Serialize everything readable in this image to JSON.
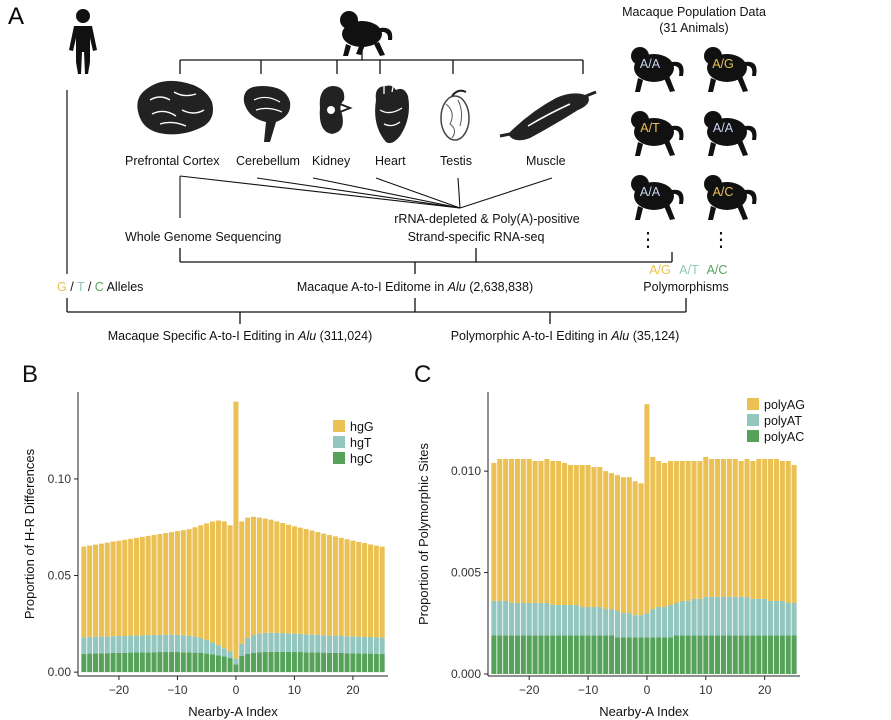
{
  "panel_a": {
    "panel_letter": "A",
    "population": {
      "title_line1": "Macaque Population Data",
      "title_line2": "(31 Animals)",
      "genotypes": [
        "A/A",
        "A/G",
        "A/T",
        "A/A",
        "A/A",
        "A/C"
      ],
      "ellipsis": "⋮",
      "poly_ag": "A/G",
      "poly_at": "A/T",
      "poly_ac": "A/C",
      "polymorphisms_label": "Polymorphisms"
    },
    "tissues": [
      "Prefrontal Cortex",
      "Cerebellum",
      "Kidney",
      "Heart",
      "Testis",
      "Muscle"
    ],
    "wgs_label": "Whole Genome Sequencing",
    "rnaseq_line1": "rRNA-depleted & Poly(A)-positive",
    "rnaseq_line2": "Strand-specific RNA-seq",
    "alleles": {
      "g": "G",
      "sep1": " / ",
      "t": "T",
      "sep2": " / ",
      "c": "C",
      "rest": " Alleles"
    },
    "editome": {
      "pre": "Macaque A-to-I Editome in ",
      "alu": "Alu",
      "post": " (2,638,838)"
    },
    "specific": {
      "pre": "Macaque Specific A-to-I Editing in ",
      "alu": "Alu",
      "post": " (311,024)"
    },
    "polymorphic": {
      "pre": "Polymorphic A-to-I Editing in ",
      "alu": "Alu",
      "post": " (35,124)"
    }
  },
  "colors": {
    "yellow": "#EBC154",
    "teal": "#93C6BF",
    "green": "#57A25B",
    "black": "#111111"
  },
  "chart_data": [
    {
      "panel_letter": "B",
      "type": "bar",
      "stacked": true,
      "xlabel": "Nearby-A Index",
      "ylabel": "Proportion of H-R Differences",
      "xlim": [
        -27,
        26
      ],
      "ylim": [
        -0.002,
        0.145
      ],
      "xticks": [
        -20,
        -10,
        0,
        10,
        20
      ],
      "xtick_labels": [
        "−20",
        "−10",
        "0",
        "10",
        "20"
      ],
      "yticks": [
        0,
        0.05,
        0.1
      ],
      "ytick_labels": [
        "0.00",
        "0.05",
        "0.10"
      ],
      "legend_position": "top-right",
      "x": [
        -26,
        -25,
        -24,
        -23,
        -22,
        -21,
        -20,
        -19,
        -18,
        -17,
        -16,
        -15,
        -14,
        -13,
        -12,
        -11,
        -10,
        -9,
        -8,
        -7,
        -6,
        -5,
        -4,
        -3,
        -2,
        -1,
        0,
        1,
        2,
        3,
        4,
        5,
        6,
        7,
        8,
        9,
        10,
        11,
        12,
        13,
        14,
        15,
        16,
        17,
        18,
        19,
        20,
        21,
        22,
        23,
        24,
        25
      ],
      "series": [
        {
          "name": "hgC",
          "values": [
            0.0095,
            0.0096,
            0.0097,
            0.0098,
            0.0098,
            0.0099,
            0.01,
            0.01,
            0.0101,
            0.0102,
            0.0102,
            0.0103,
            0.0103,
            0.0104,
            0.0104,
            0.0104,
            0.0104,
            0.0103,
            0.0102,
            0.0101,
            0.0099,
            0.0096,
            0.0092,
            0.0087,
            0.0081,
            0.0073,
            0.004,
            0.0085,
            0.0094,
            0.0099,
            0.0102,
            0.0104,
            0.0105,
            0.0105,
            0.0105,
            0.0105,
            0.0104,
            0.0104,
            0.0103,
            0.0102,
            0.0102,
            0.0101,
            0.01,
            0.01,
            0.0099,
            0.0098,
            0.0098,
            0.0097,
            0.0096,
            0.0096,
            0.0095,
            0.0095
          ]
        },
        {
          "name": "hgT",
          "values": [
            0.0085,
            0.0085,
            0.0086,
            0.0086,
            0.0086,
            0.0087,
            0.0087,
            0.0087,
            0.0088,
            0.0088,
            0.0088,
            0.0089,
            0.0089,
            0.0089,
            0.0089,
            0.0089,
            0.0089,
            0.0088,
            0.0086,
            0.0083,
            0.0078,
            0.0071,
            0.0063,
            0.0053,
            0.0043,
            0.0034,
            0.003,
            0.0062,
            0.0083,
            0.0093,
            0.0097,
            0.0099,
            0.0099,
            0.0098,
            0.0097,
            0.0096,
            0.0095,
            0.0094,
            0.0093,
            0.0092,
            0.0091,
            0.009,
            0.0089,
            0.0089,
            0.0088,
            0.0088,
            0.0087,
            0.0087,
            0.0086,
            0.0086,
            0.0085,
            0.0085
          ]
        },
        {
          "name": "hgG",
          "values": [
            0.047,
            0.0474,
            0.0477,
            0.0481,
            0.0486,
            0.049,
            0.0493,
            0.0498,
            0.0501,
            0.0505,
            0.051,
            0.0513,
            0.0518,
            0.0522,
            0.0527,
            0.0532,
            0.0537,
            0.0544,
            0.0552,
            0.0566,
            0.0583,
            0.0603,
            0.0625,
            0.0645,
            0.0656,
            0.0653,
            0.133,
            0.0633,
            0.0623,
            0.0612,
            0.0601,
            0.0592,
            0.0585,
            0.0577,
            0.057,
            0.0562,
            0.0556,
            0.055,
            0.0545,
            0.0539,
            0.0532,
            0.0526,
            0.0521,
            0.0514,
            0.0508,
            0.0502,
            0.0496,
            0.049,
            0.0486,
            0.0479,
            0.0475,
            0.047
          ]
        }
      ]
    },
    {
      "panel_letter": "C",
      "type": "bar",
      "stacked": true,
      "xlabel": "Nearby-A Index",
      "ylabel": "Proportion of Polymorphic Sites",
      "xlim": [
        -27,
        26
      ],
      "ylim": [
        -0.0001,
        0.0139
      ],
      "xticks": [
        -20,
        -10,
        0,
        10,
        20
      ],
      "xtick_labels": [
        "−20",
        "−10",
        "0",
        "10",
        "20"
      ],
      "yticks": [
        0,
        0.005,
        0.01
      ],
      "ytick_labels": [
        "0.000",
        "0.005",
        "0.010"
      ],
      "legend_position": "top-right",
      "x": [
        -26,
        -25,
        -24,
        -23,
        -22,
        -21,
        -20,
        -19,
        -18,
        -17,
        -16,
        -15,
        -14,
        -13,
        -12,
        -11,
        -10,
        -9,
        -8,
        -7,
        -6,
        -5,
        -4,
        -3,
        -2,
        -1,
        0,
        1,
        2,
        3,
        4,
        5,
        6,
        7,
        8,
        9,
        10,
        11,
        12,
        13,
        14,
        15,
        16,
        17,
        18,
        19,
        20,
        21,
        22,
        23,
        24,
        25
      ],
      "series": [
        {
          "name": "polyAC",
          "values": [
            0.0019,
            0.0019,
            0.0019,
            0.0019,
            0.0019,
            0.0019,
            0.0019,
            0.0019,
            0.0019,
            0.0019,
            0.0019,
            0.0019,
            0.0019,
            0.0019,
            0.0019,
            0.0019,
            0.0019,
            0.0019,
            0.0019,
            0.0019,
            0.0019,
            0.0018,
            0.0018,
            0.0018,
            0.0018,
            0.0018,
            0.0018,
            0.0018,
            0.0018,
            0.0018,
            0.0018,
            0.0019,
            0.0019,
            0.0019,
            0.0019,
            0.0019,
            0.0019,
            0.0019,
            0.0019,
            0.0019,
            0.0019,
            0.0019,
            0.0019,
            0.0019,
            0.0019,
            0.0019,
            0.0019,
            0.0019,
            0.0019,
            0.0019,
            0.0019,
            0.0019
          ]
        },
        {
          "name": "polyAT",
          "values": [
            0.0017,
            0.0017,
            0.0017,
            0.0016,
            0.0016,
            0.0016,
            0.0016,
            0.0016,
            0.0016,
            0.0016,
            0.0015,
            0.0015,
            0.0015,
            0.0015,
            0.0015,
            0.0014,
            0.0014,
            0.0014,
            0.0014,
            0.0013,
            0.0013,
            0.0013,
            0.0012,
            0.0012,
            0.0011,
            0.0011,
            0.0012,
            0.0014,
            0.0015,
            0.0015,
            0.0016,
            0.0016,
            0.0017,
            0.0017,
            0.0018,
            0.0018,
            0.0019,
            0.0019,
            0.0019,
            0.0019,
            0.0019,
            0.0019,
            0.0019,
            0.0019,
            0.0018,
            0.0018,
            0.0018,
            0.0017,
            0.0017,
            0.0017,
            0.0016,
            0.0016
          ]
        },
        {
          "name": "polyAG",
          "values": [
            0.0068,
            0.007,
            0.007,
            0.0071,
            0.0071,
            0.0071,
            0.0071,
            0.007,
            0.007,
            0.0071,
            0.0071,
            0.0071,
            0.007,
            0.0069,
            0.0069,
            0.007,
            0.007,
            0.0069,
            0.0069,
            0.0068,
            0.0067,
            0.0067,
            0.0067,
            0.0067,
            0.0066,
            0.0065,
            0.0103,
            0.0075,
            0.0072,
            0.0071,
            0.0071,
            0.007,
            0.0069,
            0.0069,
            0.0068,
            0.0068,
            0.0069,
            0.0068,
            0.0068,
            0.0068,
            0.0068,
            0.0068,
            0.0067,
            0.0068,
            0.0068,
            0.0069,
            0.0069,
            0.007,
            0.007,
            0.0069,
            0.007,
            0.0068
          ]
        }
      ]
    }
  ]
}
